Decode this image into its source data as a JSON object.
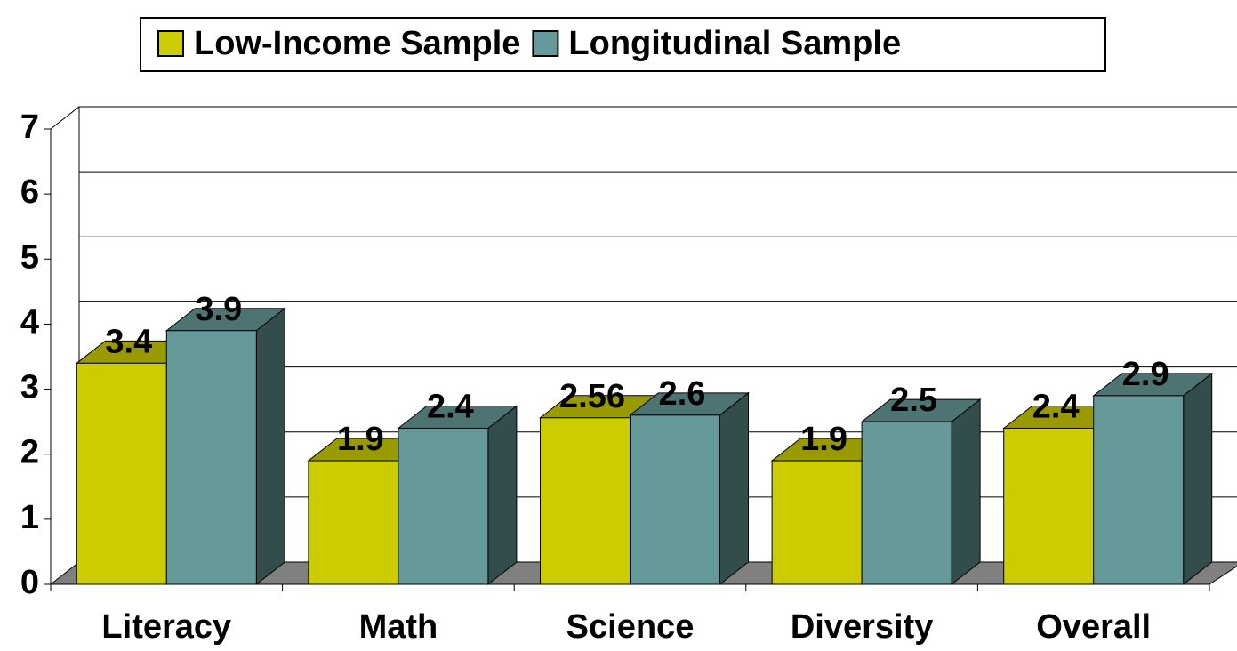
{
  "chart_data": {
    "type": "bar3d",
    "categories": [
      "Literacy",
      "Math",
      "Science",
      "Diversity",
      "Overall"
    ],
    "series": [
      {
        "name": "Low-Income Sample",
        "color": "#cccc00",
        "values": [
          3.4,
          1.9,
          2.56,
          1.9,
          2.4
        ]
      },
      {
        "name": "Longitudinal Sample",
        "color": "#669999",
        "values": [
          3.9,
          2.4,
          2.6,
          2.5,
          2.9
        ]
      }
    ],
    "ylim": [
      0,
      7
    ],
    "yticks": [
      0,
      1,
      2,
      3,
      4,
      5,
      6,
      7
    ],
    "grid": true,
    "legend": "top"
  }
}
